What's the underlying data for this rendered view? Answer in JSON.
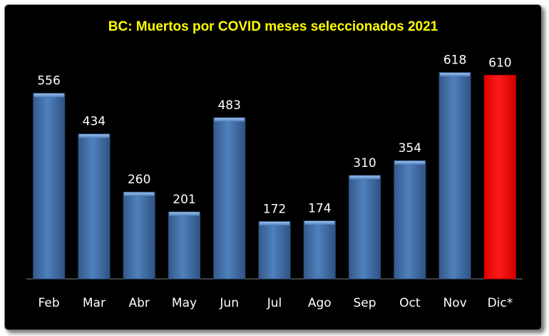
{
  "chart_data": {
    "type": "bar",
    "title": "BC: Muertos por COVID meses seleccionados 2021",
    "xlabel": "",
    "ylabel": "",
    "categories": [
      "Feb",
      "Mar",
      "Abr",
      "May",
      "Jun",
      "Jul",
      "Ago",
      "Sep",
      "Oct",
      "Nov",
      "Dic*"
    ],
    "values": [
      556,
      434,
      260,
      201,
      483,
      172,
      174,
      310,
      354,
      618,
      610
    ],
    "ylim": [
      0,
      700
    ],
    "grid": false,
    "legend": "none",
    "colors": {
      "background": "#000000",
      "bar": "#4f81bd",
      "highlight_bar": "#ff0000",
      "title": "#ffff00",
      "labels": "#ffffff"
    },
    "highlight_index": 10
  }
}
